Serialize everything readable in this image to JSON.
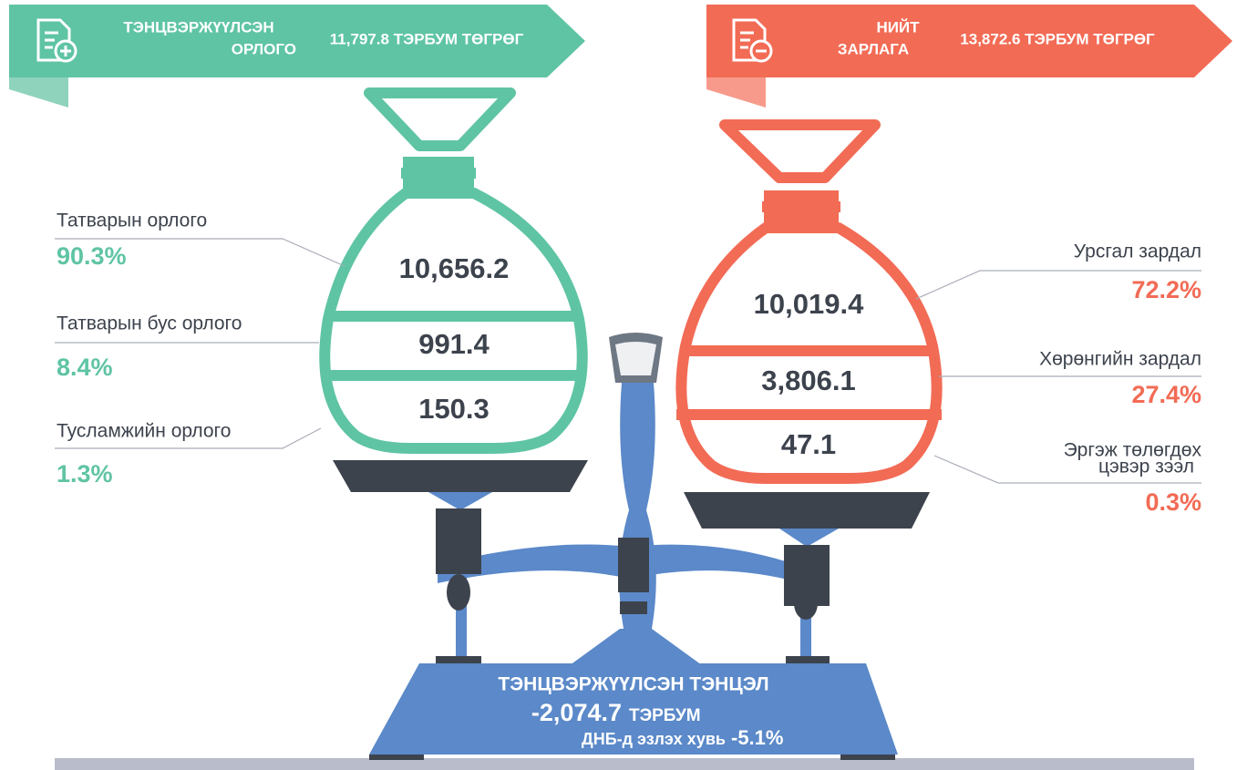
{
  "income": {
    "title_lines": [
      "ТЭНЦВЭРЖҮҮЛСЭН",
      "ОРЛОГО"
    ],
    "total": "11,797.8 ТЭРБУМ ТӨГРӨГ",
    "items": [
      {
        "label_lines": [
          "Татварын орлого"
        ],
        "share": "90.3%",
        "amount": "10,656.2"
      },
      {
        "label_lines": [
          "Татварын бус орлого"
        ],
        "share": "8.4%",
        "amount": "991.4"
      },
      {
        "label_lines": [
          "Тусламжийн орлого"
        ],
        "share": "1.3%",
        "amount": "150.3"
      }
    ]
  },
  "expense": {
    "title_lines": [
      "НИЙТ",
      "ЗАРЛАГА"
    ],
    "total": "13,872.6 ТЭРБУМ ТӨГРӨГ",
    "items": [
      {
        "label_lines": [
          "Урсгал зардал"
        ],
        "share": "72.2%",
        "amount": "10,019.4"
      },
      {
        "label_lines": [
          "Хөрөнгийн зардал"
        ],
        "share": "27.4%",
        "amount": "3,806.1"
      },
      {
        "label_lines": [
          "Эргэж төлөгдөх",
          "цэвэр зээл"
        ],
        "share": "0.3%",
        "amount": "47.1"
      }
    ]
  },
  "balance": {
    "title": "ТЭНЦВЭРЖҮҮЛСЭН ТЭНЦЭЛ",
    "amount": "-2,074.7",
    "unit": "ТЭРБУМ",
    "gdp_label": "ДНБ-д эзлэх хувь",
    "gdp_share": "-5.1%"
  }
}
